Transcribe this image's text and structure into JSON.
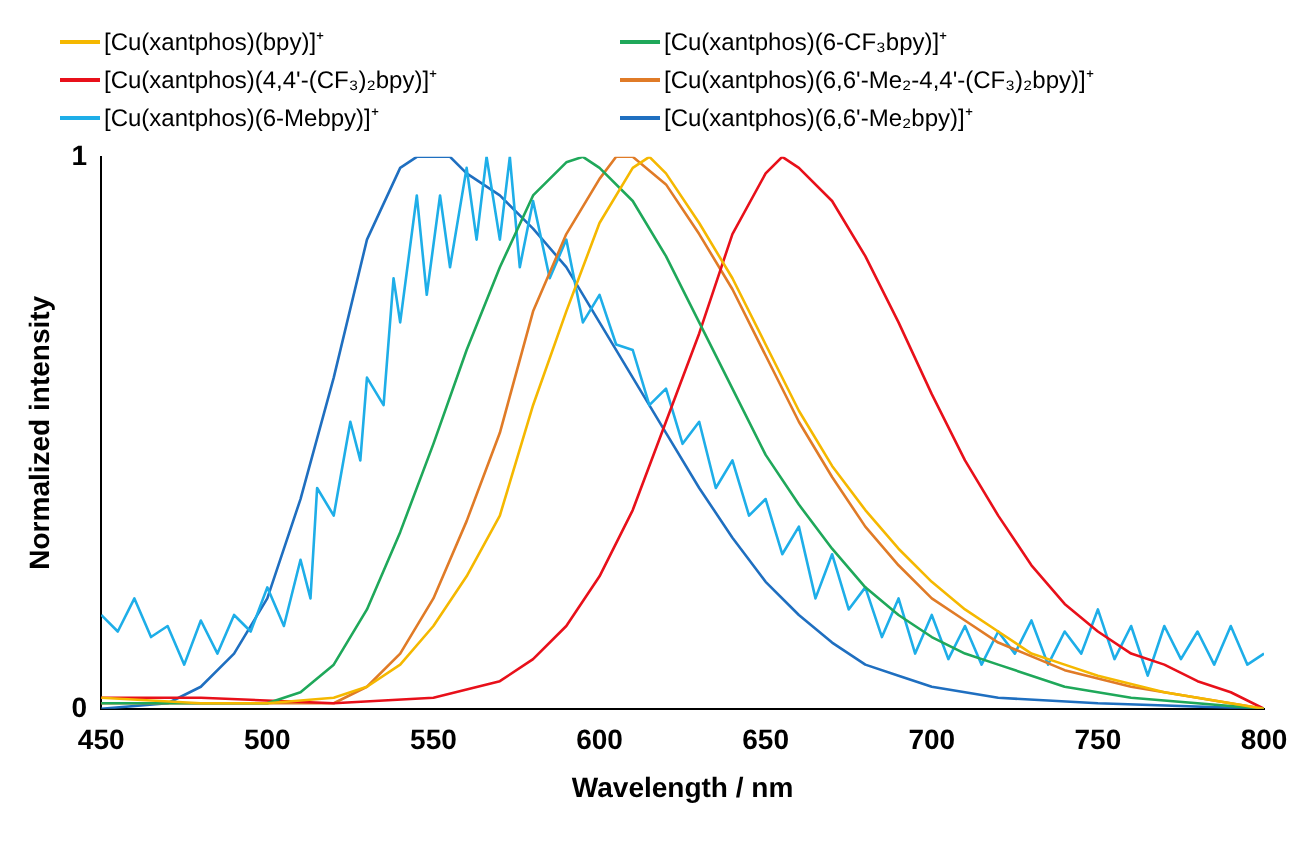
{
  "chart_data": {
    "type": "line",
    "xlabel": "Wavelength / nm",
    "ylabel": "Normalized intensity",
    "xlim": [
      450,
      800
    ],
    "xticks": [
      450,
      500,
      550,
      600,
      650,
      700,
      750,
      800
    ],
    "ylim": [
      0,
      1
    ],
    "yticks": [
      0,
      1
    ],
    "grid": false,
    "legend": "top",
    "series": [
      {
        "name": "[Cu(xantphos)(bpy)]⁺",
        "color": "#f5b800",
        "x": [
          450,
          480,
          500,
          520,
          530,
          540,
          550,
          560,
          570,
          580,
          590,
          600,
          610,
          615,
          620,
          630,
          640,
          650,
          660,
          670,
          680,
          690,
          700,
          710,
          720,
          730,
          740,
          750,
          770,
          800
        ],
        "values": [
          0.02,
          0.01,
          0.01,
          0.02,
          0.04,
          0.08,
          0.15,
          0.24,
          0.35,
          0.55,
          0.72,
          0.88,
          0.98,
          1.0,
          0.97,
          0.88,
          0.78,
          0.66,
          0.54,
          0.44,
          0.36,
          0.29,
          0.23,
          0.18,
          0.14,
          0.1,
          0.08,
          0.06,
          0.03,
          0.0
        ]
      },
      {
        "name": "[Cu(xantphos)(6-CF₃bpy)]⁺",
        "color": "#1fa85a",
        "x": [
          450,
          500,
          510,
          520,
          530,
          540,
          550,
          560,
          570,
          580,
          590,
          595,
          600,
          610,
          620,
          630,
          640,
          650,
          660,
          670,
          680,
          690,
          700,
          710,
          720,
          740,
          760,
          800
        ],
        "values": [
          0.01,
          0.01,
          0.03,
          0.08,
          0.18,
          0.32,
          0.48,
          0.65,
          0.8,
          0.93,
          0.99,
          1.0,
          0.98,
          0.92,
          0.82,
          0.7,
          0.58,
          0.46,
          0.37,
          0.29,
          0.22,
          0.17,
          0.13,
          0.1,
          0.08,
          0.04,
          0.02,
          0.0
        ]
      },
      {
        "name": "[Cu(xantphos)(4,4'-(CF₃)₂bpy)]⁺",
        "color": "#e8101a",
        "x": [
          450,
          480,
          520,
          550,
          570,
          580,
          590,
          600,
          610,
          620,
          630,
          640,
          650,
          655,
          660,
          670,
          680,
          690,
          700,
          710,
          720,
          730,
          740,
          750,
          760,
          770,
          780,
          790,
          800
        ],
        "values": [
          0.02,
          0.02,
          0.01,
          0.02,
          0.05,
          0.09,
          0.15,
          0.24,
          0.36,
          0.52,
          0.68,
          0.86,
          0.97,
          1.0,
          0.98,
          0.92,
          0.82,
          0.7,
          0.57,
          0.45,
          0.35,
          0.26,
          0.19,
          0.14,
          0.1,
          0.08,
          0.05,
          0.03,
          0.0
        ]
      },
      {
        "name": "[Cu(xantphos)(6,6'-Me₂-4,4'-(CF₃)₂bpy)]⁺",
        "color": "#e07b27",
        "x": [
          450,
          520,
          530,
          540,
          550,
          560,
          570,
          580,
          590,
          600,
          605,
          610,
          620,
          630,
          640,
          650,
          660,
          670,
          680,
          690,
          700,
          710,
          720,
          740,
          760,
          800
        ],
        "values": [
          0.01,
          0.01,
          0.04,
          0.1,
          0.2,
          0.34,
          0.5,
          0.72,
          0.86,
          0.96,
          1.0,
          1.0,
          0.95,
          0.86,
          0.76,
          0.64,
          0.52,
          0.42,
          0.33,
          0.26,
          0.2,
          0.16,
          0.12,
          0.07,
          0.04,
          0.0
        ]
      },
      {
        "name": "[Cu(xantphos)(6-Mebpy)]⁺",
        "color": "#1eaee8",
        "x": [
          450,
          455,
          460,
          465,
          470,
          475,
          480,
          485,
          490,
          495,
          500,
          505,
          510,
          513,
          515,
          520,
          525,
          528,
          530,
          535,
          538,
          540,
          545,
          548,
          552,
          555,
          560,
          563,
          566,
          570,
          573,
          576,
          580,
          585,
          590,
          595,
          600,
          605,
          610,
          615,
          620,
          625,
          630,
          635,
          640,
          645,
          650,
          655,
          660,
          665,
          670,
          675,
          680,
          685,
          690,
          695,
          700,
          705,
          710,
          715,
          720,
          725,
          730,
          735,
          740,
          745,
          750,
          755,
          760,
          765,
          770,
          775,
          780,
          785,
          790,
          795,
          800
        ],
        "values": [
          0.17,
          0.14,
          0.2,
          0.13,
          0.15,
          0.08,
          0.16,
          0.1,
          0.17,
          0.14,
          0.22,
          0.15,
          0.27,
          0.2,
          0.4,
          0.35,
          0.52,
          0.45,
          0.6,
          0.55,
          0.78,
          0.7,
          0.93,
          0.75,
          0.93,
          0.8,
          0.98,
          0.85,
          1.0,
          0.85,
          1.0,
          0.8,
          0.92,
          0.78,
          0.85,
          0.7,
          0.75,
          0.66,
          0.65,
          0.55,
          0.58,
          0.48,
          0.52,
          0.4,
          0.45,
          0.35,
          0.38,
          0.28,
          0.33,
          0.2,
          0.28,
          0.18,
          0.22,
          0.13,
          0.2,
          0.1,
          0.17,
          0.09,
          0.15,
          0.08,
          0.14,
          0.1,
          0.16,
          0.08,
          0.14,
          0.1,
          0.18,
          0.09,
          0.15,
          0.06,
          0.15,
          0.09,
          0.14,
          0.08,
          0.15,
          0.08,
          0.1
        ]
      },
      {
        "name": "[Cu(xantphos)(6,6'-Me₂bpy)]⁺",
        "color": "#1f6fc0",
        "x": [
          450,
          470,
          480,
          490,
          500,
          510,
          520,
          530,
          540,
          545,
          555,
          560,
          570,
          580,
          590,
          600,
          610,
          620,
          630,
          640,
          650,
          660,
          670,
          680,
          690,
          700,
          720,
          750,
          800
        ],
        "values": [
          0.0,
          0.01,
          0.04,
          0.1,
          0.2,
          0.38,
          0.6,
          0.85,
          0.98,
          1.0,
          1.0,
          0.97,
          0.93,
          0.87,
          0.8,
          0.7,
          0.6,
          0.5,
          0.4,
          0.31,
          0.23,
          0.17,
          0.12,
          0.08,
          0.06,
          0.04,
          0.02,
          0.01,
          0.0
        ]
      }
    ]
  }
}
